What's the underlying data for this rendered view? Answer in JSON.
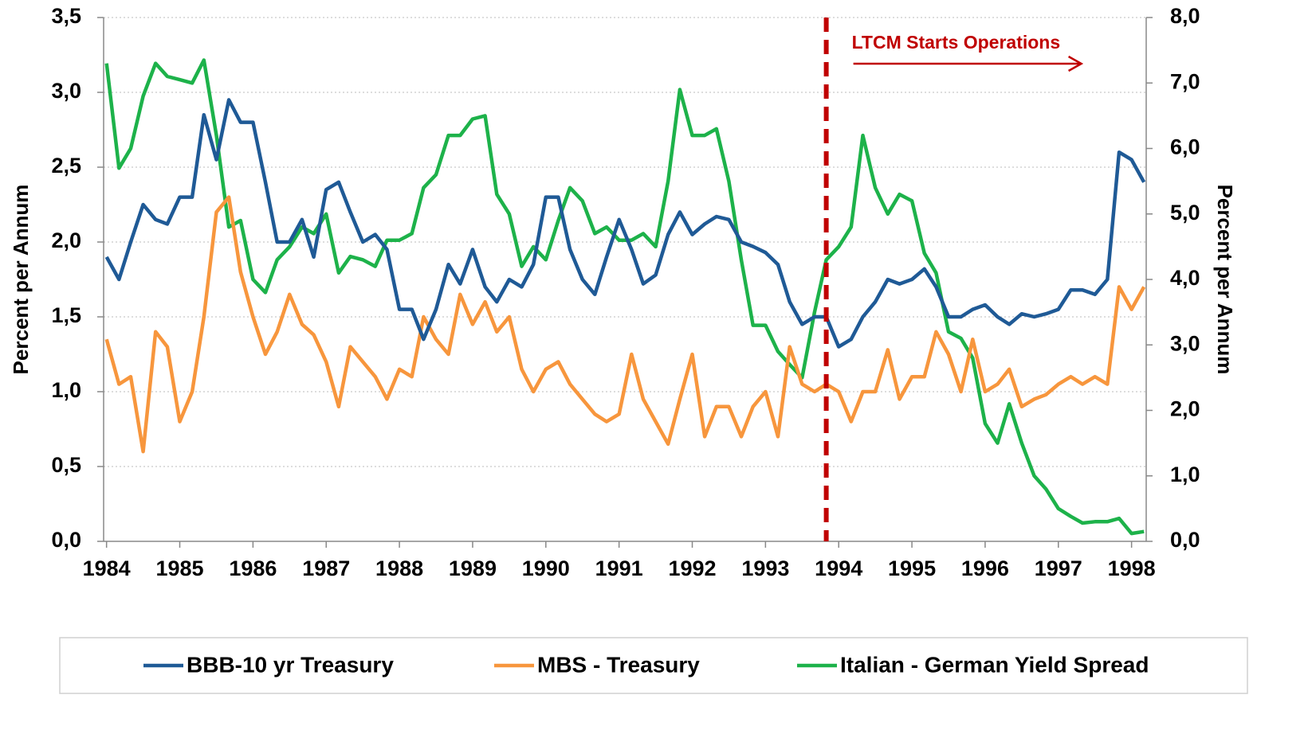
{
  "chart_data": {
    "type": "line",
    "y_label": "Percent per Annum",
    "y2_label": "Percent per Annum",
    "annotation": {
      "text": "LTCM Starts Operations",
      "x": 1993.83,
      "color": "#c00000"
    },
    "x": [
      1984.0,
      1984.17,
      1984.33,
      1984.5,
      1984.67,
      1984.83,
      1985.0,
      1985.17,
      1985.33,
      1985.5,
      1985.67,
      1985.83,
      1986.0,
      1986.17,
      1986.33,
      1986.5,
      1986.67,
      1986.83,
      1987.0,
      1987.17,
      1987.33,
      1987.5,
      1987.67,
      1987.83,
      1988.0,
      1988.17,
      1988.33,
      1988.5,
      1988.67,
      1988.83,
      1989.0,
      1989.17,
      1989.33,
      1989.5,
      1989.67,
      1989.83,
      1990.0,
      1990.17,
      1990.33,
      1990.5,
      1990.67,
      1990.83,
      1991.0,
      1991.17,
      1991.33,
      1991.5,
      1991.67,
      1991.83,
      1992.0,
      1992.17,
      1992.33,
      1992.5,
      1992.67,
      1992.83,
      1993.0,
      1993.17,
      1993.33,
      1993.5,
      1993.67,
      1993.83,
      1994.0,
      1994.17,
      1994.33,
      1994.5,
      1994.67,
      1994.83,
      1995.0,
      1995.17,
      1995.33,
      1995.5,
      1995.67,
      1995.83,
      1996.0,
      1996.17,
      1996.33,
      1996.5,
      1996.67,
      1996.83,
      1997.0,
      1997.17,
      1997.33,
      1997.5,
      1997.67,
      1997.83,
      1998.0,
      1998.17
    ],
    "series": [
      {
        "name": "BBB-10 yr Treasury",
        "color": "#1f5a96",
        "values": [
          1.9,
          1.75,
          2.0,
          2.25,
          2.15,
          2.12,
          2.3,
          2.3,
          2.85,
          2.55,
          2.95,
          2.8,
          2.8,
          2.4,
          2.0,
          2.0,
          2.15,
          1.9,
          2.35,
          2.4,
          2.2,
          2.0,
          2.05,
          1.95,
          1.55,
          1.55,
          1.35,
          1.55,
          1.85,
          1.72,
          1.95,
          1.7,
          1.6,
          1.75,
          1.7,
          1.85,
          2.3,
          2.3,
          1.95,
          1.75,
          1.65,
          1.9,
          2.15,
          1.95,
          1.72,
          1.78,
          2.05,
          2.2,
          2.05,
          2.12,
          2.17,
          2.15,
          2.0,
          1.97,
          1.93,
          1.85,
          1.6,
          1.45,
          1.5,
          1.5,
          1.3,
          1.35,
          1.5,
          1.6,
          1.75,
          1.72,
          1.75,
          1.82,
          1.7,
          1.5,
          1.5,
          1.55,
          1.58,
          1.5,
          1.45,
          1.52,
          1.5,
          1.52,
          1.55,
          1.68,
          1.68,
          1.65,
          1.75,
          2.6,
          2.55,
          2.4
        ]
      },
      {
        "name": "MBS - Treasury",
        "color": "#f7963d",
        "values": [
          1.35,
          1.05,
          1.1,
          0.6,
          1.4,
          1.3,
          0.8,
          1.0,
          1.5,
          2.2,
          2.3,
          1.8,
          1.5,
          1.25,
          1.4,
          1.65,
          1.45,
          1.38,
          1.2,
          0.9,
          1.3,
          1.2,
          1.1,
          0.95,
          1.15,
          1.1,
          1.5,
          1.35,
          1.25,
          1.65,
          1.45,
          1.6,
          1.4,
          1.5,
          1.15,
          1.0,
          1.15,
          1.2,
          1.05,
          0.95,
          0.85,
          0.8,
          0.85,
          1.25,
          0.95,
          0.8,
          0.65,
          0.95,
          1.25,
          0.7,
          0.9,
          0.9,
          0.7,
          0.9,
          1.0,
          0.7,
          1.3,
          1.05,
          1.0,
          1.05,
          1.0,
          0.8,
          1.0,
          1.0,
          1.28,
          0.95,
          1.1,
          1.1,
          1.4,
          1.25,
          1.0,
          1.35,
          1.0,
          1.05,
          1.15,
          0.9,
          0.95,
          0.98,
          1.05,
          1.1,
          1.05,
          1.1,
          1.05,
          1.7,
          1.55,
          1.7
        ]
      },
      {
        "name": "Italian - German Yield Spread",
        "color": "#1db24a",
        "axis": "y2",
        "values": [
          7.3,
          5.7,
          6.0,
          6.8,
          7.3,
          7.1,
          7.05,
          7.0,
          7.35,
          6.2,
          4.8,
          4.9,
          4.0,
          3.8,
          4.3,
          4.5,
          4.8,
          4.7,
          5.0,
          4.1,
          4.35,
          4.3,
          4.2,
          4.6,
          4.6,
          4.7,
          5.4,
          5.6,
          6.2,
          6.2,
          6.45,
          6.5,
          5.3,
          5.0,
          4.2,
          4.5,
          4.3,
          4.9,
          5.4,
          5.2,
          4.7,
          4.8,
          4.6,
          4.6,
          4.7,
          4.5,
          5.5,
          6.9,
          6.2,
          6.2,
          6.3,
          5.5,
          4.3,
          3.3,
          3.3,
          2.9,
          2.7,
          2.5,
          3.5,
          4.3,
          4.5,
          4.8,
          6.2,
          5.4,
          5.0,
          5.3,
          5.2,
          4.4,
          4.1,
          3.2,
          3.1,
          2.8,
          1.8,
          1.5,
          2.1,
          1.5,
          1.0,
          0.8,
          0.5,
          0.38,
          0.28,
          0.3,
          0.3,
          0.35,
          0.12,
          0.15
        ]
      }
    ],
    "xlim": [
      1983.96,
      1998.2
    ],
    "xticks": [
      1984,
      1985,
      1986,
      1987,
      1988,
      1989,
      1990,
      1991,
      1992,
      1993,
      1994,
      1995,
      1996,
      1997,
      1998
    ],
    "ylim": [
      0,
      3.5
    ],
    "yticks": [
      {
        "value": 0,
        "label": "0,0"
      },
      {
        "value": 0.5,
        "label": "0,5"
      },
      {
        "value": 1,
        "label": "1,0"
      },
      {
        "value": 1.5,
        "label": "1,5"
      },
      {
        "value": 2,
        "label": "2,0"
      },
      {
        "value": 2.5,
        "label": "2,5"
      },
      {
        "value": 3,
        "label": "3,0"
      },
      {
        "value": 3.5,
        "label": "3,5"
      }
    ],
    "y2lim": [
      0,
      8
    ],
    "y2ticks": [
      {
        "value": 0,
        "label": "0,0"
      },
      {
        "value": 1,
        "label": "1,0"
      },
      {
        "value": 2,
        "label": "2,0"
      },
      {
        "value": 3,
        "label": "3,0"
      },
      {
        "value": 4,
        "label": "4,0"
      },
      {
        "value": 5,
        "label": "5,0"
      },
      {
        "value": 6,
        "label": "6,0"
      },
      {
        "value": 7,
        "label": "7,0"
      },
      {
        "value": 8,
        "label": "8,0"
      }
    ],
    "grid": true,
    "legend": "bottom"
  }
}
